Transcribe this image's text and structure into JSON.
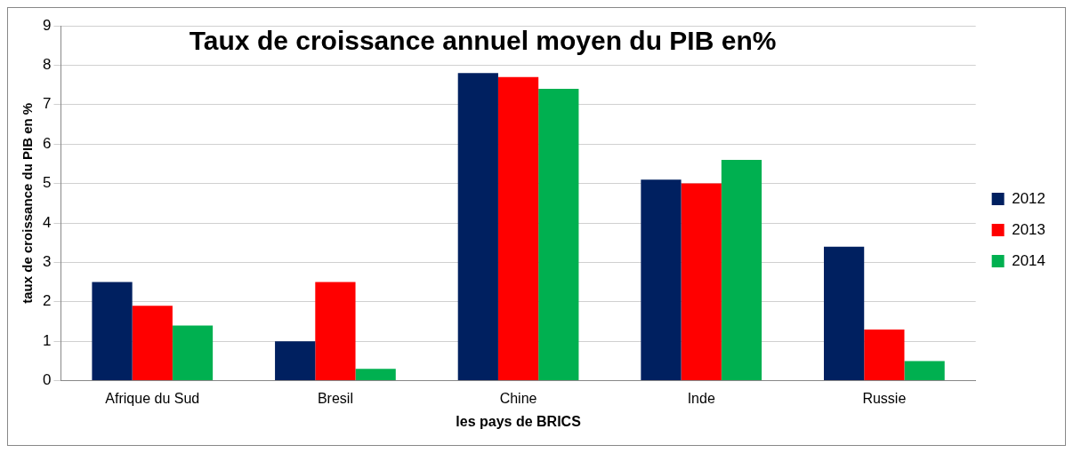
{
  "chart_data": {
    "type": "bar",
    "title": "Taux de croissance annuel moyen du PIB en%",
    "xlabel": "les pays de BRICS",
    "ylabel": "taux de croissance du PIB en %",
    "categories": [
      "Afrique du Sud",
      "Bresil",
      "Chine",
      "Inde",
      "Russie"
    ],
    "series": [
      {
        "name": "2012",
        "color": "#002060",
        "values": [
          2.5,
          1.0,
          7.8,
          5.1,
          3.4
        ]
      },
      {
        "name": "2013",
        "color": "#ff0000",
        "values": [
          1.9,
          2.5,
          7.7,
          5.0,
          1.3
        ]
      },
      {
        "name": "2014",
        "color": "#00b050",
        "values": [
          1.4,
          0.3,
          7.4,
          5.6,
          0.5
        ]
      }
    ],
    "ylim": [
      0,
      9
    ],
    "yticks": [
      0,
      1,
      2,
      3,
      4,
      5,
      6,
      7,
      8,
      9
    ],
    "grid": "y",
    "legend": "right"
  }
}
